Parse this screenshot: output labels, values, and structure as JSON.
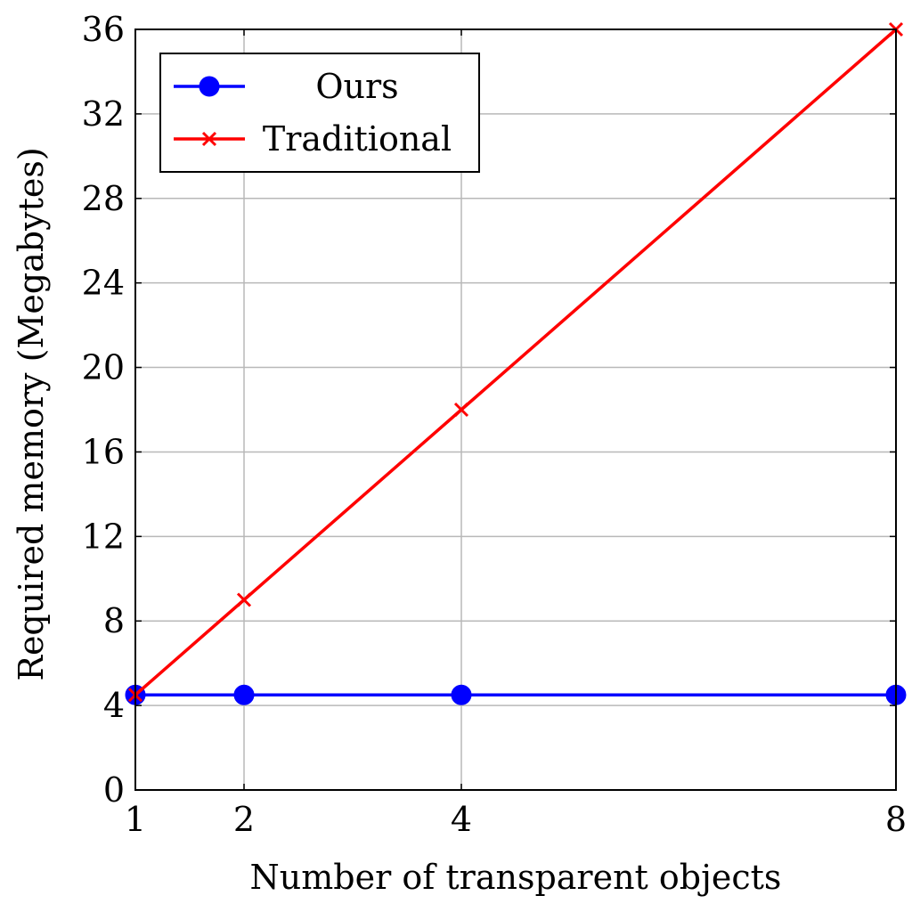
{
  "chart_data": {
    "type": "line",
    "xlabel": "Number of transparent objects",
    "ylabel": "Required memory (Megabytes)",
    "x": [
      1,
      2,
      4,
      8
    ],
    "xlim": [
      1,
      8
    ],
    "ylim": [
      0,
      36
    ],
    "x_ticks": [
      1,
      2,
      4,
      8
    ],
    "y_ticks": [
      0,
      4,
      8,
      12,
      16,
      20,
      24,
      28,
      32,
      36
    ],
    "grid": true,
    "legend_position": "top-left",
    "series": [
      {
        "name": "Ours",
        "values": [
          4.5,
          4.5,
          4.5,
          4.5
        ],
        "color": "#0000ff",
        "marker": "circle"
      },
      {
        "name": "Traditional",
        "values": [
          4.5,
          9,
          18,
          36
        ],
        "color": "#ff0000",
        "marker": "x"
      }
    ]
  }
}
